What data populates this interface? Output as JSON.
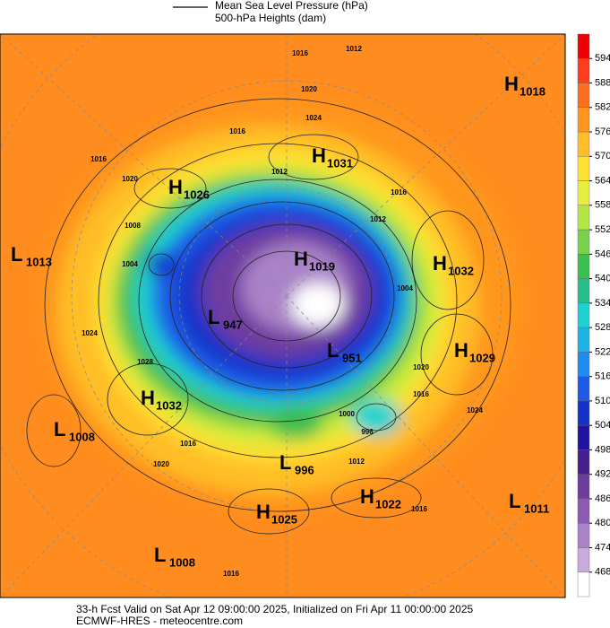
{
  "header": {
    "legend_line": "Mean Sea Level Pressure (hPa)",
    "legend_fill": "500-hPa Heights (dam)"
  },
  "colorbar": {
    "levels": [
      594,
      588,
      582,
      576,
      570,
      564,
      558,
      552,
      546,
      540,
      534,
      528,
      522,
      516,
      510,
      504,
      498,
      492,
      486,
      480,
      474,
      468
    ],
    "colors": [
      "#f00000",
      "#ff3c1e",
      "#ff6e1e",
      "#ff961e",
      "#ffbe28",
      "#ffe132",
      "#e6f03c",
      "#b4e646",
      "#78d24b",
      "#3cbe50",
      "#28be8c",
      "#1ed2d2",
      "#1eb4e6",
      "#1e8cf0",
      "#1e5ae6",
      "#1432c8",
      "#1e14a0",
      "#461e8c",
      "#6e3ca0",
      "#8c5ab4",
      "#aa82c8",
      "#c8aadc",
      "#ffffff"
    ]
  },
  "centers": [
    {
      "letter": "H",
      "value": 1018
    },
    {
      "letter": "H",
      "value": 1031
    },
    {
      "letter": "H",
      "value": 1026
    },
    {
      "letter": "L",
      "value": 1013
    },
    {
      "letter": "H",
      "value": 1019
    },
    {
      "letter": "H",
      "value": 1032
    },
    {
      "letter": "L",
      "value": 947
    },
    {
      "letter": "L",
      "value": 951
    },
    {
      "letter": "H",
      "value": 1029
    },
    {
      "letter": "H",
      "value": 1032
    },
    {
      "letter": "L",
      "value": 1008
    },
    {
      "letter": "L",
      "value": 996
    },
    {
      "letter": "H",
      "value": 1022
    },
    {
      "letter": "H",
      "value": 1025
    },
    {
      "letter": "L",
      "value": 1011
    },
    {
      "letter": "L",
      "value": 1008
    }
  ],
  "isobar_labels": [
    1012,
    1016,
    1020,
    1024,
    1016,
    1016,
    1020,
    1008,
    1004,
    1012,
    1016,
    1024,
    1028,
    1020,
    1016,
    1024,
    1016,
    1012,
    1016,
    1000,
    996,
    1012,
    1004,
    1016,
    1020
  ],
  "footer": {
    "line1": "33-h Fcst Valid on Sat Apr 12 09:00:00 2025, Initialized on Fri Apr 11 00:00:00 2025",
    "line2": "ECMWF-HRES  - meteocentre.com"
  }
}
